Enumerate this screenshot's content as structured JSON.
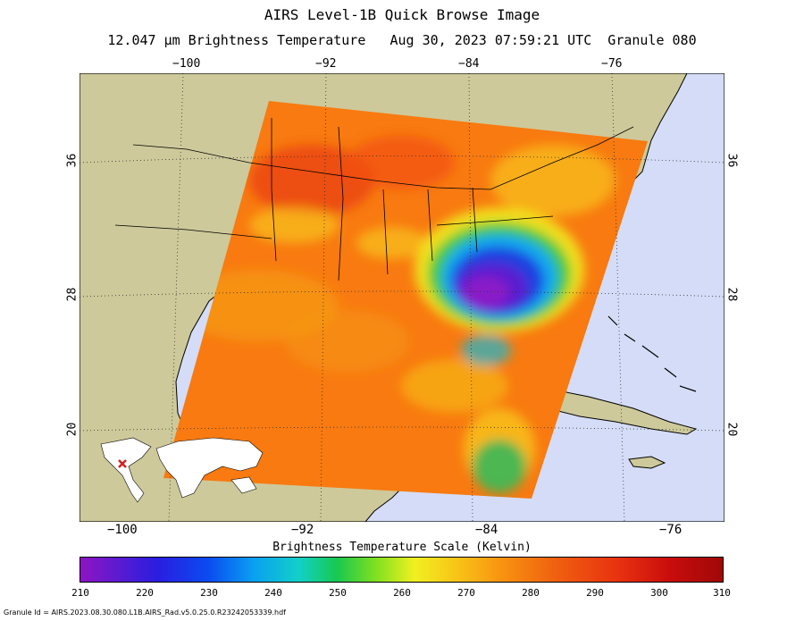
{
  "header": {
    "title": "AIRS Level-1B Quick Browse Image",
    "subtitle": "12.047 µm Brightness Temperature   Aug 30, 2023 07:59:21 UTC  Granule 080"
  },
  "map": {
    "top_lon_labels": [
      "−100",
      "−92",
      "−84",
      "−76"
    ],
    "bottom_lon_labels": [
      "−100",
      "−92",
      "−84",
      "−76"
    ],
    "left_lat_labels": [
      "36",
      "28",
      "20"
    ],
    "right_lat_labels": [
      "36",
      "28",
      "20"
    ],
    "colors": {
      "land": "#cdc99a",
      "ocean": "#d4dcf7",
      "swath_warm": "#f87a10",
      "storm_core": "#8a1ec8"
    }
  },
  "colorbar": {
    "title": "Brightness Temperature Scale (Kelvin)",
    "ticks": [
      "210",
      "220",
      "230",
      "240",
      "250",
      "260",
      "270",
      "280",
      "290",
      "300",
      "310"
    ]
  },
  "footer": {
    "granule_id": "Granule Id = AIRS.2023.08.30.080.L1B.AIRS_Rad.v5.0.25.0.R23242053339.hdf"
  }
}
